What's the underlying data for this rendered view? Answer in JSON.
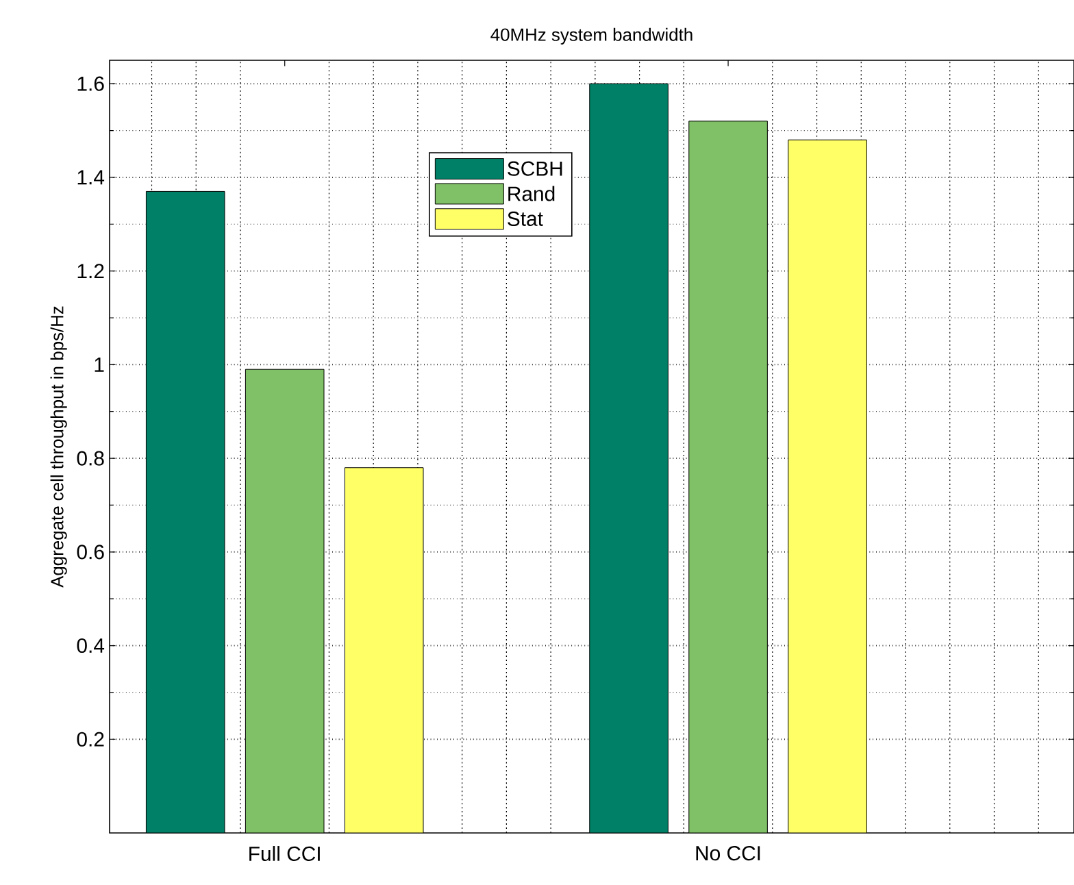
{
  "chart_data": {
    "type": "bar",
    "title": "40MHz system bandwidth",
    "ylabel": "Aggregate cell throughput in bps/Hz",
    "categories": [
      "Full CCI",
      "No CCI"
    ],
    "series": [
      {
        "name": "SCBH",
        "color": "#008066",
        "values": [
          1.37,
          1.6
        ]
      },
      {
        "name": "Rand",
        "color": "#80c066",
        "values": [
          0.99,
          1.52
        ]
      },
      {
        "name": "Stat",
        "color": "#ffff66",
        "values": [
          0.78,
          1.48
        ]
      }
    ],
    "ylim": [
      0,
      1.65
    ],
    "yticks": [
      0.2,
      0.4,
      0.6,
      0.8,
      1,
      1.2,
      1.4,
      1.6
    ],
    "grid": true,
    "legend": "top"
  }
}
